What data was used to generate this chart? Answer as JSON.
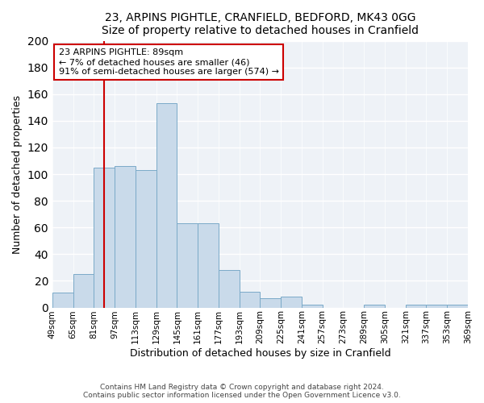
{
  "title": "23, ARPINS PIGHTLE, CRANFIELD, BEDFORD, MK43 0GG",
  "subtitle": "Size of property relative to detached houses in Cranfield",
  "xlabel": "Distribution of detached houses by size in Cranfield",
  "ylabel": "Number of detached properties",
  "bar_values": [
    11,
    25,
    105,
    106,
    103,
    153,
    63,
    63,
    28,
    12,
    7,
    8,
    2,
    0,
    0,
    2,
    0,
    2,
    2,
    2
  ],
  "bin_edges": [
    49,
    65,
    81,
    97,
    113,
    129,
    145,
    161,
    177,
    193,
    209,
    225,
    241,
    257,
    273,
    289,
    305,
    321,
    337,
    353,
    369
  ],
  "bin_labels": [
    "49sqm",
    "65sqm",
    "81sqm",
    "97sqm",
    "113sqm",
    "129sqm",
    "145sqm",
    "161sqm",
    "177sqm",
    "193sqm",
    "209sqm",
    "225sqm",
    "241sqm",
    "257sqm",
    "273sqm",
    "289sqm",
    "305sqm",
    "321sqm",
    "337sqm",
    "353sqm",
    "369sqm"
  ],
  "bar_color": "#c9daea",
  "bar_edge_color": "#7aaac8",
  "vline_x": 89,
  "vline_color": "#cc0000",
  "annotation_title": "23 ARPINS PIGHTLE: 89sqm",
  "annotation_line1": "← 7% of detached houses are smaller (46)",
  "annotation_line2": "91% of semi-detached houses are larger (574) →",
  "annotation_box_color": "#cc0000",
  "ylim": [
    0,
    200
  ],
  "yticks": [
    0,
    20,
    40,
    60,
    80,
    100,
    120,
    140,
    160,
    180,
    200
  ],
  "footnote1": "Contains HM Land Registry data © Crown copyright and database right 2024.",
  "footnote2": "Contains public sector information licensed under the Open Government Licence v3.0.",
  "bg_color": "#eef2f7"
}
